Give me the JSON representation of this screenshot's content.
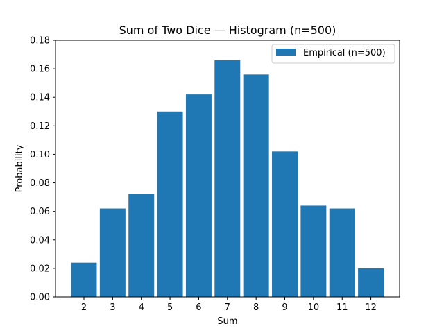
{
  "chart_data": {
    "type": "bar",
    "title": "Sum of Two Dice — Histogram (n=500)",
    "xlabel": "Sum",
    "ylabel": "Probability",
    "categories": [
      "2",
      "3",
      "4",
      "5",
      "6",
      "7",
      "8",
      "9",
      "10",
      "11",
      "12"
    ],
    "series": [
      {
        "name": "Empirical (n=500)",
        "color": "#1f77b4",
        "values": [
          0.024,
          0.062,
          0.072,
          0.13,
          0.142,
          0.166,
          0.156,
          0.102,
          0.064,
          0.062,
          0.02
        ]
      }
    ],
    "ylim": [
      0,
      0.18
    ],
    "yticks": [
      "0.00",
      "0.02",
      "0.04",
      "0.06",
      "0.08",
      "0.10",
      "0.12",
      "0.14",
      "0.16",
      "0.18"
    ],
    "grid": false,
    "legend_position": "top-right"
  }
}
